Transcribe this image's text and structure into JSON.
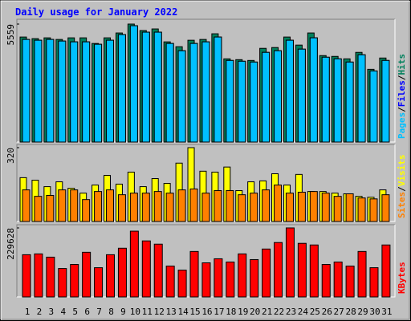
{
  "title": "Daily usage for January 2022",
  "legend_separator": "/",
  "chart_data": [
    {
      "type": "bar",
      "ylim": [
        0,
        5559
      ],
      "yticks": [
        5559
      ],
      "series": [
        {
          "name": "Hits",
          "color": "#00805c",
          "values": [
            4949,
            4873,
            4911,
            4835,
            4911,
            4911,
            4645,
            4911,
            5140,
            5559,
            5254,
            5330,
            4721,
            4493,
            4797,
            4835,
            5102,
            3921,
            3883,
            3845,
            4416,
            4454,
            4949,
            4569,
            5140,
            4074,
            4036,
            3921,
            4226,
            3427,
            3960
          ]
        },
        {
          "name": "Files",
          "color": "#0000ff",
          "values": [
            4835,
            4797,
            4835,
            4759,
            4721,
            4721,
            4607,
            4797,
            5063,
            5482,
            5178,
            5178,
            4645,
            4302,
            4645,
            4721,
            4949,
            3845,
            3807,
            3769,
            4226,
            4302,
            4797,
            4378,
            4911,
            3997,
            3921,
            3769,
            4112,
            3350,
            3845
          ]
        },
        {
          "name": "Pages",
          "color": "#00c0ff",
          "values": [
            4835,
            4797,
            4835,
            4759,
            4721,
            4721,
            4607,
            4797,
            5063,
            5482,
            5178,
            5178,
            4645,
            4302,
            4645,
            4721,
            4949,
            3845,
            3807,
            3769,
            4226,
            4302,
            4797,
            4378,
            4911,
            3997,
            3921,
            3769,
            4112,
            3350,
            3845
          ]
        }
      ]
    },
    {
      "type": "bar",
      "ylim": [
        0,
        320
      ],
      "yticks": [
        320
      ],
      "series": [
        {
          "name": "Visits",
          "color": "#ffff00",
          "values": [
            190,
            179,
            151,
            172,
            144,
            123,
            158,
            200,
            162,
            214,
            151,
            186,
            165,
            253,
            320,
            218,
            214,
            236,
            134,
            172,
            176,
            207,
            158,
            204,
            130,
            130,
            123,
            120,
            109,
            105,
            137
          ]
        },
        {
          "name": "Sites",
          "color": "#ff8000",
          "values": [
            137,
            109,
            113,
            137,
            137,
            95,
            130,
            137,
            116,
            123,
            123,
            130,
            123,
            137,
            141,
            123,
            134,
            134,
            116,
            123,
            137,
            158,
            123,
            127,
            130,
            123,
            109,
            120,
            102,
            98,
            116
          ]
        }
      ]
    },
    {
      "type": "bar",
      "ylim": [
        0,
        229628
      ],
      "yticks": [
        229628
      ],
      "categories": [
        "1",
        "2",
        "3",
        "4",
        "5",
        "6",
        "7",
        "8",
        "9",
        "10",
        "11",
        "12",
        "13",
        "14",
        "15",
        "16",
        "17",
        "18",
        "19",
        "20",
        "21",
        "22",
        "23",
        "24",
        "25",
        "26",
        "27",
        "28",
        "29",
        "30",
        "31"
      ],
      "category_colors": [
        "#00805c",
        "#00805c",
        "#000000",
        "#000000",
        "#000000",
        "#000000",
        "#000000",
        "#00805c",
        "#00805c",
        "#000000",
        "#000000",
        "#000000",
        "#000000",
        "#000000",
        "#00805c",
        "#00805c",
        "#000000",
        "#000000",
        "#000000",
        "#000000",
        "#000000",
        "#00805c",
        "#00805c",
        "#000000",
        "#000000",
        "#000000",
        "#000000",
        "#000000",
        "#00805c",
        "#00805c",
        "#000000"
      ],
      "series": [
        {
          "name": "KBytes",
          "color": "#ff0000",
          "values": [
            140478,
            143180,
            132374,
            94553,
            108060,
            148583,
            97254,
            140478,
            162090,
            218822,
            186404,
            175598,
            102657,
            89150,
            151284,
            113463,
            126971,
            116165,
            143180,
            124269,
            159389,
            181001,
            229628,
            178299,
            172896,
            108060,
            116165,
            102657,
            151284,
            97254,
            172896
          ]
        }
      ]
    }
  ]
}
